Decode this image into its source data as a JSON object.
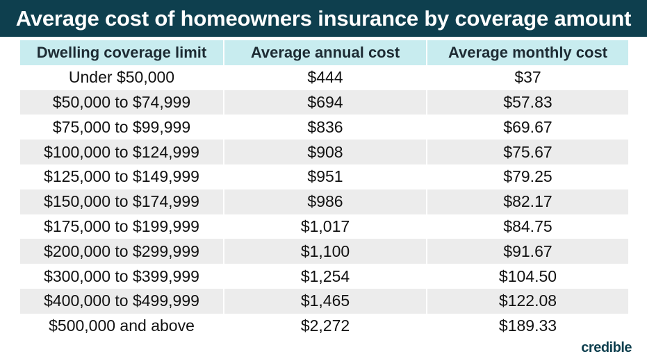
{
  "title": "Average cost of homeowners insurance by coverage amount",
  "brand": "credible",
  "colors": {
    "banner": "#0e3f4e",
    "header_row": "#c8ecef",
    "stripe": "#ececec"
  },
  "chart_data": {
    "type": "table",
    "title": "Average cost of homeowners insurance by coverage amount",
    "columns": [
      "Dwelling coverage limit",
      "Average annual cost",
      "Average monthly cost"
    ],
    "rows": [
      [
        "Under $50,000",
        "$444",
        "$37"
      ],
      [
        "$50,000 to $74,999",
        "$694",
        "$57.83"
      ],
      [
        "$75,000 to $99,999",
        "$836",
        "$69.67"
      ],
      [
        "$100,000 to $124,999",
        "$908",
        "$75.67"
      ],
      [
        "$125,000 to $149,999",
        "$951",
        "$79.25"
      ],
      [
        "$150,000 to $174,999",
        "$986",
        "$82.17"
      ],
      [
        "$175,000 to $199,999",
        "$1,017",
        "$84.75"
      ],
      [
        "$200,000 to $299,999",
        "$1,100",
        "$91.67"
      ],
      [
        "$300,000 to $399,999",
        "$1,254",
        "$104.50"
      ],
      [
        "$400,000 to $499,999",
        "$1,465",
        "$122.08"
      ],
      [
        "$500,000 and above",
        "$2,272",
        "$189.33"
      ]
    ]
  }
}
